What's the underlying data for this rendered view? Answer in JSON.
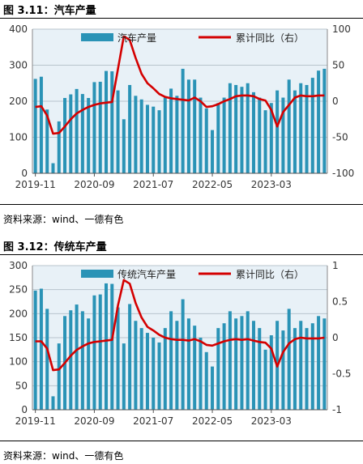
{
  "figures": [
    {
      "title": "图 3.11：汽车产量",
      "source": "资料来源：wind、一德有色"
    },
    {
      "title": "图 3.12：传统车产量",
      "source": "资料来源：wind、一德有色"
    }
  ],
  "colors": {
    "bar": "#2a93b6",
    "line": "#d40000",
    "grid": "#b8c4cc",
    "background": "#e8f1f7"
  },
  "chart_data": [
    {
      "type": "bar",
      "title": "",
      "xlabel": "",
      "ylabel": "",
      "x_ticks": [
        "2019-11",
        "2020-09",
        "2021-07",
        "2022-05",
        "2023-03"
      ],
      "y_left": {
        "lim": [
          0,
          400
        ],
        "ticks": [
          0,
          100,
          200,
          300,
          400
        ]
      },
      "y_right": {
        "lim": [
          -100,
          100
        ],
        "ticks": [
          -100,
          -50,
          0,
          50,
          100
        ]
      },
      "legend_position": "top",
      "series": [
        {
          "name": "汽车产量",
          "type": "bar",
          "axis": "left",
          "values": [
            262,
            268,
            177,
            28,
            144,
            209,
            219,
            234,
            220,
            209,
            253,
            254,
            284,
            283,
            230,
            150,
            245,
            215,
            205,
            190,
            185,
            175,
            210,
            235,
            215,
            290,
            260,
            260,
            210,
            180,
            120,
            195,
            210,
            250,
            245,
            240,
            250,
            225,
            210,
            175,
            195,
            230,
            210,
            260,
            230,
            250,
            245,
            265,
            285,
            290
          ]
        },
        {
          "name": "累计同比（右）",
          "type": "line",
          "axis": "right",
          "values": [
            -8,
            -7,
            -20,
            -45,
            -44,
            -35,
            -25,
            -17,
            -12,
            -8,
            -5,
            -3,
            -2,
            -1,
            45,
            90,
            85,
            60,
            38,
            25,
            18,
            10,
            6,
            4,
            3,
            2,
            1,
            5,
            0,
            -8,
            -7,
            -4,
            0,
            3,
            7,
            8,
            8,
            7,
            3,
            1,
            -12,
            -35,
            -15,
            -5,
            5,
            8,
            7,
            7,
            8,
            8
          ]
        }
      ]
    },
    {
      "type": "bar",
      "title": "",
      "xlabel": "",
      "ylabel": "",
      "x_ticks": [
        "2019-11",
        "2020-09",
        "2021-07",
        "2022-05",
        "2023-03"
      ],
      "y_left": {
        "lim": [
          0,
          300
        ],
        "ticks": [
          0,
          50,
          100,
          150,
          200,
          250,
          300
        ]
      },
      "y_right": {
        "lim": [
          -1,
          1
        ],
        "ticks": [
          -1,
          -0.5,
          0,
          0.5,
          1
        ]
      },
      "legend_position": "top",
      "series": [
        {
          "name": "传统汽车产量",
          "type": "bar",
          "axis": "left",
          "values": [
            248,
            252,
            210,
            28,
            138,
            195,
            207,
            219,
            205,
            190,
            238,
            240,
            263,
            262,
            213,
            138,
            220,
            185,
            170,
            160,
            150,
            140,
            170,
            205,
            185,
            230,
            190,
            175,
            150,
            120,
            90,
            170,
            180,
            205,
            190,
            195,
            205,
            185,
            170,
            125,
            155,
            185,
            165,
            210,
            170,
            185,
            170,
            180,
            195,
            190
          ]
        },
        {
          "name": "累计同比（右）",
          "type": "line",
          "axis": "right",
          "values": [
            -0.05,
            -0.05,
            -0.15,
            -0.45,
            -0.44,
            -0.35,
            -0.25,
            -0.17,
            -0.12,
            -0.08,
            -0.06,
            -0.05,
            -0.04,
            -0.03,
            0.45,
            0.8,
            0.75,
            0.48,
            0.28,
            0.15,
            0.1,
            0.04,
            0.0,
            -0.02,
            -0.03,
            -0.03,
            -0.04,
            -0.02,
            -0.05,
            -0.1,
            -0.11,
            -0.08,
            -0.05,
            -0.03,
            -0.02,
            -0.03,
            -0.02,
            -0.04,
            -0.06,
            -0.07,
            -0.15,
            -0.4,
            -0.2,
            -0.08,
            -0.02,
            0.0,
            -0.01,
            -0.01,
            -0.01,
            0.0
          ]
        }
      ]
    }
  ]
}
